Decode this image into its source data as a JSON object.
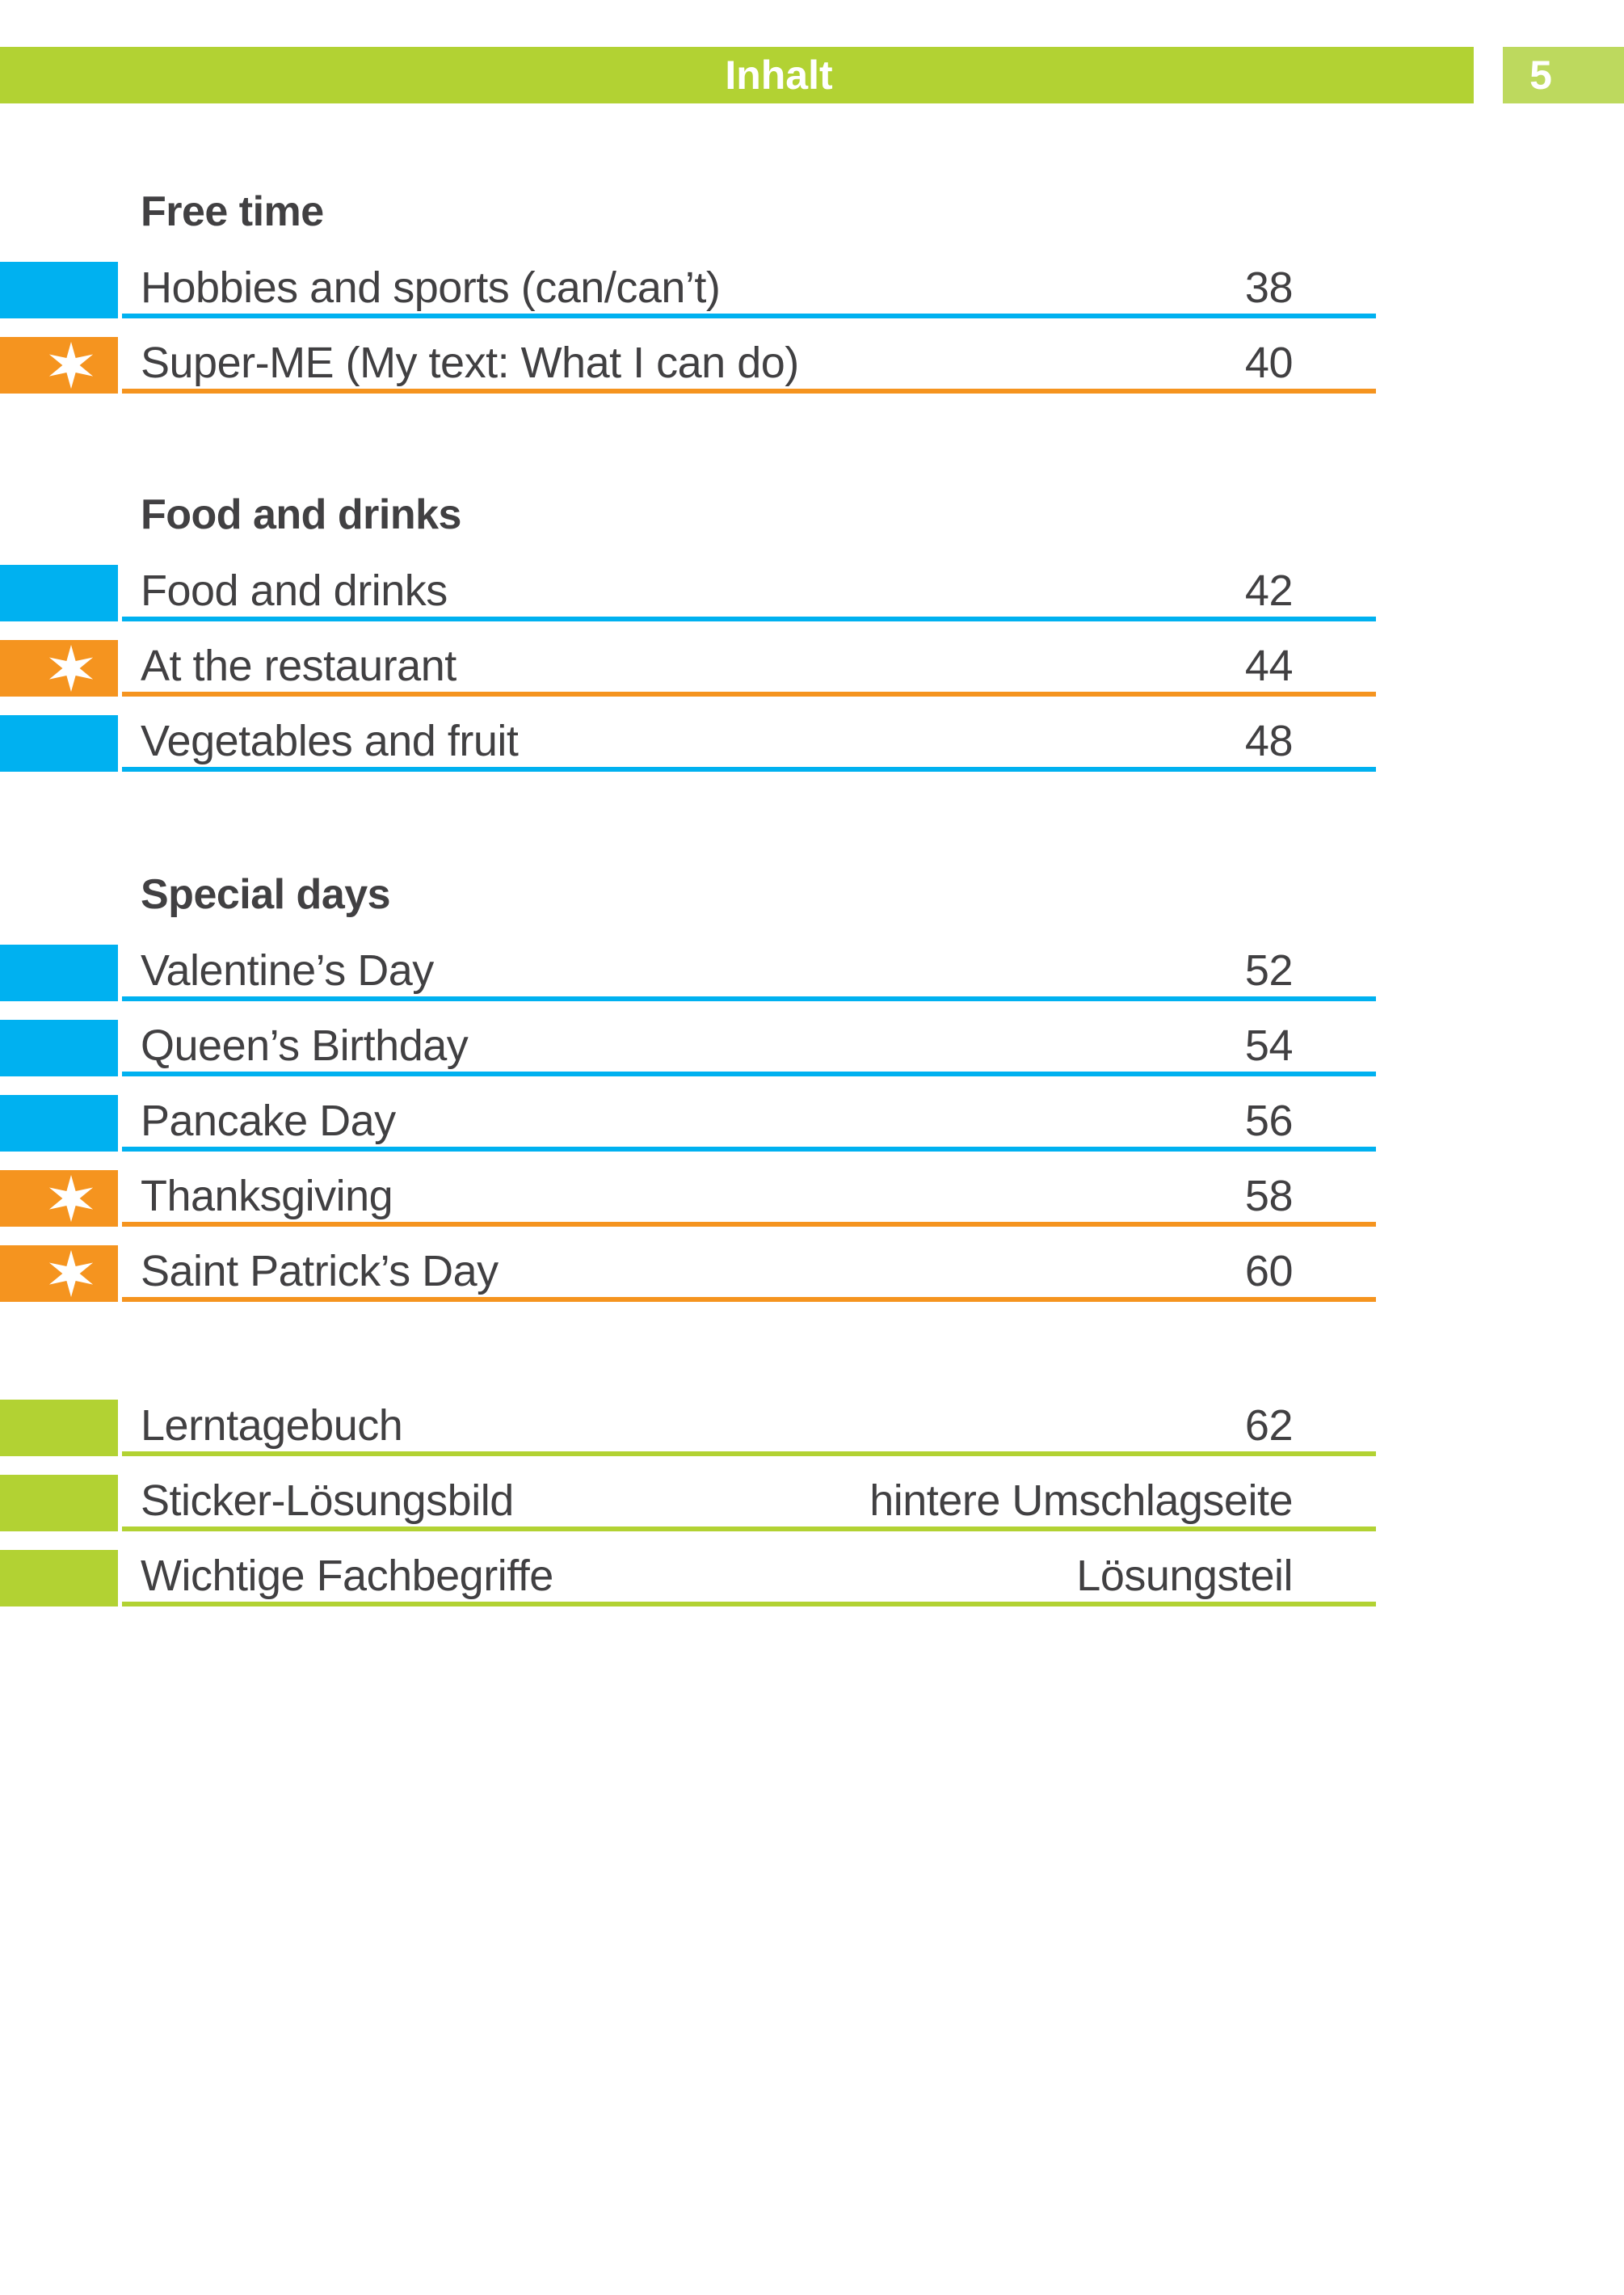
{
  "header": {
    "title": "Inhalt",
    "page_number": "5"
  },
  "colors": {
    "green": "#b2d233",
    "green_light": "#bdd95e",
    "blue": "#00b1f0",
    "orange": "#f5941f",
    "text": "#414042"
  },
  "icons": {
    "star": "six-point-sparkle-star"
  },
  "sections": [
    {
      "heading": "Free time",
      "rows": [
        {
          "label": "Hobbies and sports (can/can’t)",
          "value": "38",
          "color": "blue",
          "star": false
        },
        {
          "label": "Super-ME (My text: What I can do)",
          "value": "40",
          "color": "orange",
          "star": true
        }
      ]
    },
    {
      "heading": "Food and drinks",
      "rows": [
        {
          "label": "Food and drinks",
          "value": "42",
          "color": "blue",
          "star": false
        },
        {
          "label": "At the restaurant",
          "value": "44",
          "color": "orange",
          "star": true
        },
        {
          "label": "Vegetables and fruit",
          "value": "48",
          "color": "blue",
          "star": false
        }
      ]
    },
    {
      "heading": "Special days",
      "rows": [
        {
          "label": "Valentine’s Day",
          "value": "52",
          "color": "blue",
          "star": false
        },
        {
          "label": "Queen’s Birthday",
          "value": "54",
          "color": "blue",
          "star": false
        },
        {
          "label": "Pancake Day",
          "value": "56",
          "color": "blue",
          "star": false
        },
        {
          "label": "Thanksgiving",
          "value": "58",
          "color": "orange",
          "star": true
        },
        {
          "label": "Saint Patrick’s Day",
          "value": "60",
          "color": "orange",
          "star": true
        }
      ]
    },
    {
      "heading": null,
      "rows": [
        {
          "label": "Lerntagebuch",
          "value": "62",
          "color": "green",
          "star": false
        },
        {
          "label": "Sticker-Lösungsbild",
          "value": "hintere Umschlagseite",
          "color": "green",
          "star": false
        },
        {
          "label": "Wichtige Fachbegriffe",
          "value": "Lösungsteil",
          "color": "green",
          "star": false
        }
      ]
    }
  ]
}
